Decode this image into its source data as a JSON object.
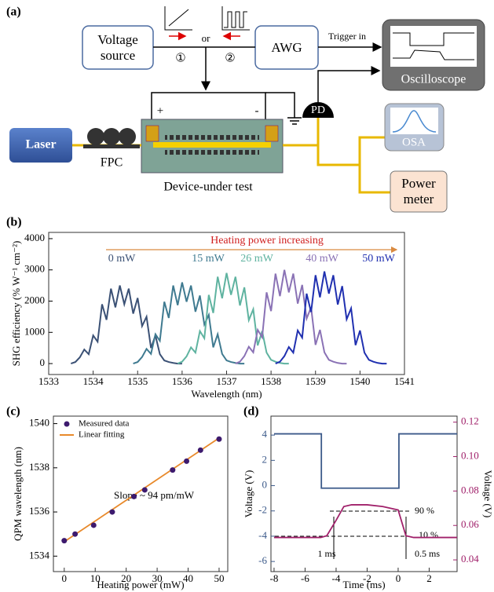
{
  "diagram": {
    "panel_label": "(a)",
    "voltage_source": "Voltage source",
    "path_1": "①",
    "or": "or",
    "path_2": "②",
    "awg": "AWG",
    "trigger_in": "Trigger in",
    "oscilloscope": "Oscilloscope",
    "pd": "PD",
    "osa": "OSA",
    "laser": "Laser",
    "fpc": "FPC",
    "device": "Device-under test",
    "power_meter": "Power meter",
    "plus": "+",
    "minus": "-"
  },
  "chart_data": [
    {
      "type": "line",
      "panel_label": "(b)",
      "annotation": "Heating power increasing",
      "xlabel": "Wavelength (nm)",
      "ylabel": "SHG efficiency (% W⁻¹ cm⁻²)",
      "xlim": [
        1533,
        1541
      ],
      "xticks": [
        1533,
        1534,
        1535,
        1536,
        1537,
        1538,
        1539,
        1540,
        1541
      ],
      "ylim": [
        -350,
        4200
      ],
      "yticks": [
        0,
        1000,
        2000,
        3000,
        4000
      ],
      "series": [
        {
          "name": "0 mW",
          "color": "#3b5175",
          "x": [
            1533.5,
            1533.6,
            1533.7,
            1533.8,
            1533.9,
            1534.0,
            1534.1,
            1534.2,
            1534.3,
            1534.4,
            1534.5,
            1534.6,
            1534.7,
            1534.8,
            1534.9,
            1535.0,
            1535.1,
            1535.2,
            1535.3,
            1535.4,
            1535.5,
            1535.6,
            1535.7,
            1535.8,
            1535.9,
            1536.0
          ],
          "values": [
            0,
            50,
            200,
            450,
            300,
            900,
            700,
            1900,
            1400,
            2400,
            1800,
            2500,
            1900,
            2400,
            1600,
            2100,
            1200,
            1500,
            500,
            900,
            300,
            100,
            50,
            20,
            0,
            0
          ]
        },
        {
          "name": "15 mW",
          "color": "#3f7a90",
          "x": [
            1534.9,
            1535.0,
            1535.1,
            1535.2,
            1535.3,
            1535.4,
            1535.5,
            1535.6,
            1535.7,
            1535.8,
            1535.9,
            1536.0,
            1536.1,
            1536.2,
            1536.3,
            1536.4,
            1536.5,
            1536.6,
            1536.7,
            1536.8,
            1536.9,
            1537.0,
            1537.1,
            1537.2,
            1537.3,
            1537.4
          ],
          "values": [
            0,
            50,
            210,
            470,
            310,
            940,
            730,
            1980,
            1460,
            2500,
            1870,
            2600,
            1980,
            2500,
            1660,
            2180,
            1250,
            1560,
            520,
            940,
            310,
            100,
            50,
            20,
            0,
            0
          ]
        },
        {
          "name": "26 mW",
          "color": "#5fb3a0",
          "x": [
            1535.9,
            1536.0,
            1536.1,
            1536.2,
            1536.3,
            1536.4,
            1536.5,
            1536.6,
            1536.7,
            1536.8,
            1536.9,
            1537.0,
            1537.1,
            1537.2,
            1537.3,
            1537.4,
            1537.5,
            1537.6,
            1537.7,
            1537.8,
            1537.9,
            1538.0,
            1538.1,
            1538.2,
            1538.3,
            1538.4
          ],
          "values": [
            0,
            60,
            230,
            520,
            350,
            1040,
            810,
            2200,
            1620,
            2780,
            2090,
            2900,
            2200,
            2780,
            1860,
            2440,
            1390,
            1740,
            580,
            1040,
            350,
            120,
            60,
            20,
            0,
            0
          ]
        },
        {
          "name": "40 mW",
          "color": "#8a72b5",
          "x": [
            1537.2,
            1537.3,
            1537.4,
            1537.5,
            1537.6,
            1537.7,
            1537.8,
            1537.9,
            1538.0,
            1538.1,
            1538.2,
            1538.3,
            1538.4,
            1538.5,
            1538.6,
            1538.7,
            1538.8,
            1538.9,
            1539.0,
            1539.1,
            1539.2,
            1539.3,
            1539.4,
            1539.5,
            1539.6,
            1539.7
          ],
          "values": [
            0,
            60,
            240,
            540,
            360,
            1080,
            840,
            2280,
            1680,
            2880,
            2160,
            3000,
            2280,
            2880,
            1920,
            2520,
            1440,
            1800,
            600,
            1080,
            360,
            120,
            60,
            20,
            0,
            0
          ]
        },
        {
          "name": "50 mW",
          "color": "#2030b0",
          "x": [
            1538.1,
            1538.2,
            1538.3,
            1538.4,
            1538.5,
            1538.6,
            1538.7,
            1538.8,
            1538.9,
            1539.0,
            1539.1,
            1539.2,
            1539.3,
            1539.4,
            1539.5,
            1539.6,
            1539.7,
            1539.8,
            1539.9,
            1540.0,
            1540.1,
            1540.2,
            1540.3,
            1540.4,
            1540.5,
            1540.6
          ],
          "values": [
            0,
            60,
            240,
            530,
            350,
            1060,
            830,
            2240,
            1650,
            2830,
            2120,
            2950,
            2240,
            2830,
            1890,
            2480,
            1420,
            1770,
            590,
            1060,
            350,
            120,
            60,
            20,
            0,
            0
          ]
        }
      ]
    },
    {
      "type": "scatter",
      "panel_label": "(c)",
      "annotation": "Slope ~ 94 pm/mW",
      "xlabel": "Heating power (mW)",
      "ylabel": "QPM wavelength (nm)",
      "legend": "upper left",
      "xlim": [
        -3.5,
        52.8
      ],
      "xticks": [
        0,
        10,
        20,
        30,
        40,
        50
      ],
      "ylim": [
        1533.3,
        1540.34
      ],
      "yticks": [
        1534,
        1536,
        1538,
        1540
      ],
      "series": [
        {
          "name": "Measured data",
          "color": "#3d1a6e",
          "mode": "markers",
          "x": [
            0,
            3.5,
            9.5,
            15.5,
            22.5,
            26,
            35,
            39.5,
            44,
            50
          ],
          "values": [
            1534.7,
            1535.0,
            1535.4,
            1536.0,
            1536.7,
            1537.0,
            1537.9,
            1538.3,
            1538.8,
            1539.3
          ]
        },
        {
          "name": "Linear fitting",
          "color": "#e8892a",
          "mode": "line",
          "x": [
            0,
            50
          ],
          "values": [
            1534.65,
            1539.35
          ]
        }
      ]
    },
    {
      "type": "line",
      "panel_label": "(d)",
      "annotations": [
        "90 %",
        "10 %",
        "1 ms",
        "0.5 ms"
      ],
      "xlabel": "Time (ms)",
      "ylabel": "Voltage (V)",
      "y2label": "Voltage (V)",
      "y_color": "#3c5a8a",
      "y2_color": "#a0206a",
      "xlim": [
        -8.2,
        3.8
      ],
      "xticks": [
        -8,
        -6,
        -4,
        -2,
        0,
        2
      ],
      "ylim": [
        -6.8,
        5.5
      ],
      "yticks": [
        -6,
        -4,
        -2,
        0,
        2,
        4
      ],
      "y2lim": [
        0.0332,
        0.1235
      ],
      "y2ticks": [
        0.04,
        0.06,
        0.08,
        {
          "value": 0.1,
          "label": "0.10"
        },
        0.12
      ],
      "series": [
        {
          "color": "#3c5a8a",
          "x": [
            -8,
            -4.95,
            -4.95,
            0.05,
            0.05,
            3.8
          ],
          "values": [
            4.1,
            4.1,
            -0.2,
            -0.2,
            4.1,
            4.1
          ]
        },
        {
          "color": "#a0206a",
          "axis": "y2",
          "x": [
            -8,
            -5,
            -4.6,
            -4,
            -3.5,
            -3,
            -2,
            -1,
            0,
            0.5,
            1,
            3.8
          ],
          "values": [
            0.053,
            0.053,
            0.054,
            0.063,
            0.071,
            0.072,
            0.072,
            0.071,
            0.069,
            0.054,
            0.053,
            0.053
          ]
        }
      ]
    }
  ]
}
